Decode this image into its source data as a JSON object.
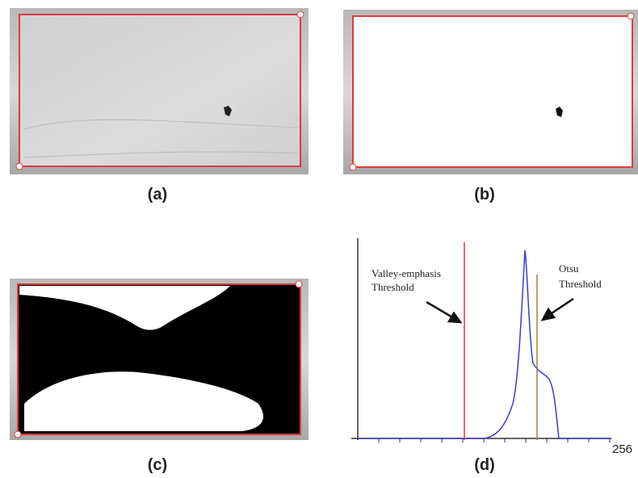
{
  "panels": [
    {
      "label": "(a)"
    },
    {
      "label": "(b)"
    },
    {
      "label": "(c)"
    },
    {
      "label": "(d)",
      "valley_label": [
        "Valley-emphasis",
        "Threshold"
      ],
      "otsu_label": [
        "Otsu",
        "Threshold"
      ],
      "x_max_label": 256
    }
  ]
}
